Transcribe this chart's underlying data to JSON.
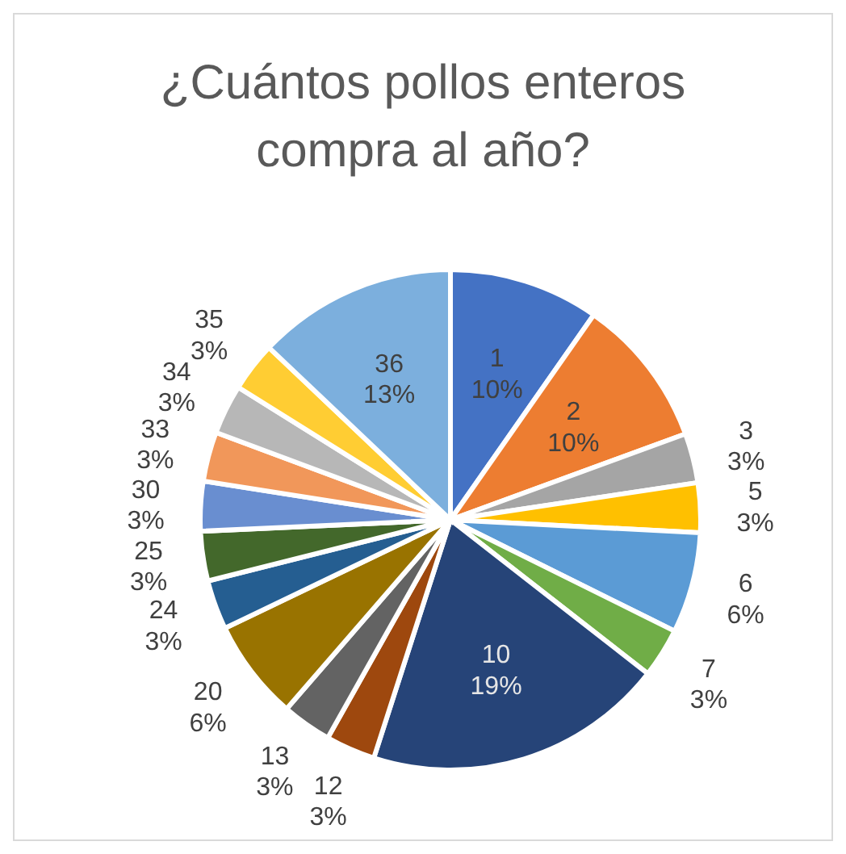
{
  "chart_data": {
    "type": "pie",
    "title": "¿Cuántos pollos enteros compra al año?",
    "categories": [
      "1",
      "2",
      "3",
      "5",
      "6",
      "7",
      "10",
      "12",
      "13",
      "20",
      "24",
      "25",
      "30",
      "33",
      "34",
      "35",
      "36"
    ],
    "values": [
      9.7,
      9.7,
      3.2,
      3.2,
      6.5,
      3.2,
      19.4,
      3.2,
      3.2,
      6.5,
      3.2,
      3.2,
      3.2,
      3.2,
      3.2,
      3.2,
      12.9
    ],
    "value_labels": [
      "10%",
      "10%",
      "3%",
      "3%",
      "6%",
      "3%",
      "19%",
      "3%",
      "3%",
      "6%",
      "3%",
      "3%",
      "3%",
      "3%",
      "3%",
      "3%",
      "13%"
    ],
    "colors": [
      "#4472c4",
      "#ed7d31",
      "#a5a5a5",
      "#ffc000",
      "#5b9bd5",
      "#70ad47",
      "#264478",
      "#9e480e",
      "#636363",
      "#997300",
      "#255e91",
      "#43682b",
      "#698ed0",
      "#f1975a",
      "#b7b7b7",
      "#ffcd33",
      "#7cafdd"
    ],
    "legend": false
  }
}
